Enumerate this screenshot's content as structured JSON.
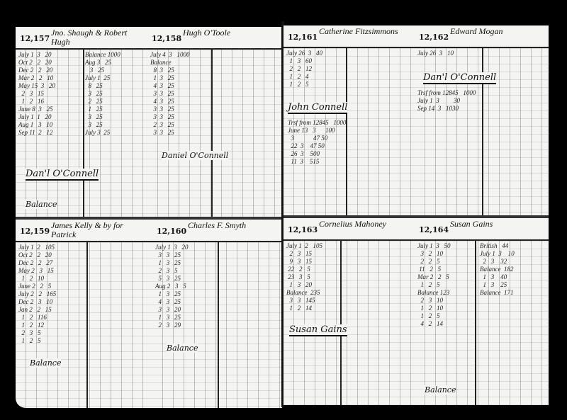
{
  "left_page": {
    "accounts": [
      {
        "number": "12,157",
        "name": "Jno. Shaugh & Robert Hugh",
        "notes": [
          "Dan'l O'Connell",
          "Balance"
        ]
      },
      {
        "number": "12,158",
        "name": "Hugh O'Toole",
        "notes": [
          "Daniel O'Connell"
        ]
      },
      {
        "number": "12,159",
        "name": "James Kelly & by for Patrick",
        "notes": [
          "Balance"
        ]
      },
      {
        "number": "12,160",
        "name": "Charles F. Smyth",
        "notes": [
          "Balance"
        ]
      }
    ]
  },
  "right_page": {
    "accounts": [
      {
        "number": "12,161",
        "name": "Catherine Fitzsimmons",
        "notes": [
          "John Connell"
        ]
      },
      {
        "number": "12,162",
        "name": "Edward Mogan",
        "notes": [
          "Dan'l O'Connell"
        ]
      },
      {
        "number": "12,163",
        "name": "Cornelius Mahoney",
        "notes": [
          "Susan Gains"
        ]
      },
      {
        "number": "12,164",
        "name": "Susan Gains",
        "notes": [
          "Balance"
        ]
      }
    ]
  }
}
